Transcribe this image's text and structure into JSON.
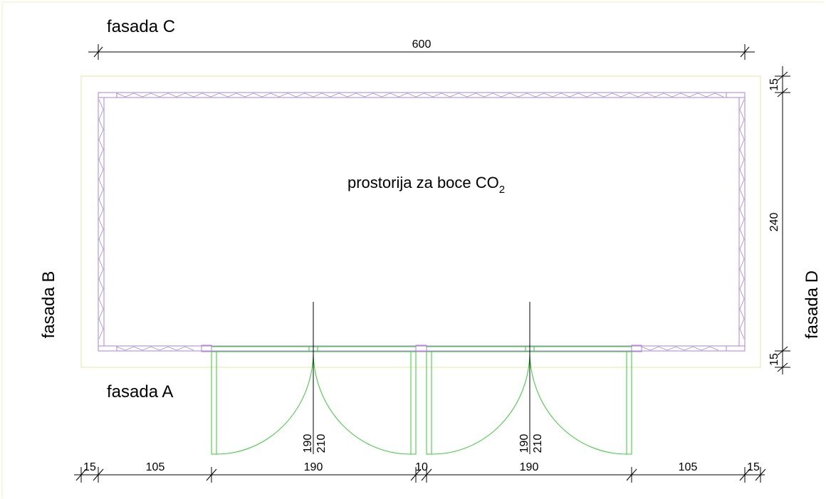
{
  "facades": {
    "a": "fasada A",
    "b": "fasada B",
    "c": "fasada C",
    "d": "fasada D"
  },
  "room": {
    "name": "prostorija za boce CO",
    "subscript": "2"
  },
  "dimensions": {
    "top_width": "600",
    "right_total": "240",
    "right_top_wall": "15",
    "right_bottom_wall": "15",
    "bottom": [
      "15",
      "105",
      "190",
      "10",
      "190",
      "105",
      "15"
    ],
    "door_left_height_inner": "190",
    "door_left_height_outer": "210",
    "door_right_height_inner": "190",
    "door_right_height_outer": "210"
  },
  "colors": {
    "wall": "#b080d8",
    "door": "#33cc33",
    "outline": "#e8e4a0",
    "dimension": "#000000"
  }
}
